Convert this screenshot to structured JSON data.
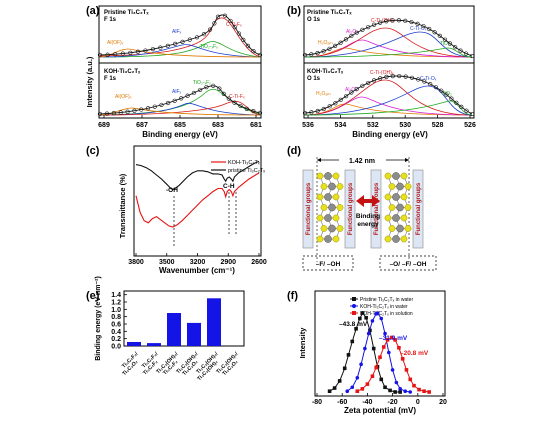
{
  "panels": {
    "a": {
      "label": "(a)",
      "top": {
        "title1": "Pristine Ti₃C₂Tₓ",
        "title2": "F 1s",
        "peaks": [
          "Al(OF)ₓ",
          "AlFₓ",
          "TiO₂-ₓFₓ",
          "C-Ti-Fₓ"
        ]
      },
      "bottom": {
        "title1": "KOH-Ti₃C₂Tₓ",
        "title2": "F 1s",
        "peaks": [
          "Al(OF)ₓ",
          "AlFₓ",
          "TiO₂-ₓFₓ",
          "C-Ti-Fₓ"
        ]
      },
      "xlabel": "Binding energy (eV)",
      "ylabel": "Intensity (a.u.)",
      "xticks": [
        "689",
        "687",
        "685",
        "683",
        "681"
      ]
    },
    "b": {
      "label": "(b)",
      "top": {
        "title1": "Pristine Ti₃C₂Tₓ",
        "title2": "O 1s",
        "peaks": [
          "H₂Oₐₙₛ",
          "Al₂O₃",
          "C-Ti-(OH)ₓ",
          "C-Ti-Oₓ",
          "TiO₂"
        ]
      },
      "bottom": {
        "title1": "KOH-Ti₃C₂Tₓ",
        "title2": "O 1s",
        "peaks": [
          "H₂Oₐₙₛ",
          "Al₂O₃",
          "C-Ti-(OH)ₓ",
          "C-Ti-Oₓ",
          "TiO₂"
        ]
      },
      "xlabel": "Binding energy (eV)",
      "xticks": [
        "536",
        "534",
        "532",
        "530",
        "528",
        "526"
      ]
    },
    "c": {
      "label": "(c)",
      "legend": [
        "KOH-Ti₃C₂Tₓ",
        "pristine Ti₃C₂Tₓ"
      ],
      "annotations": [
        "-OH",
        "C-H"
      ],
      "xlabel": "Wavenumber (cm⁻¹)",
      "ylabel": "Transmittance (%)",
      "xticks": [
        "3800",
        "3500",
        "3200",
        "2900",
        "2600"
      ]
    },
    "d": {
      "label": "(d)",
      "distance": "1.42 nm",
      "side_label": "Functional groups",
      "center_label1": "Binding",
      "center_label2": "energy",
      "left_bottom": "–F/ –OH",
      "right_bottom": "–O/ –F/ –OH"
    },
    "e": {
      "label": "(e)"
    },
    "f": {
      "label": "(f)",
      "legend": [
        "Pristine Ti₃C₂Tₓ in water",
        "KOH-Ti₃C₂Tₓ in water",
        "KOH-Ti₃C₂Tₓ in solution"
      ],
      "annotations": [
        "–43.8 mV",
        "–31.9 mV",
        "–20.8 mV"
      ]
    }
  },
  "chart_data": [
    {
      "panel": "e",
      "type": "bar",
      "categories": [
        "Ti₃C₂F₂ / Ti₃C₂O₂",
        "Ti₃C₂F₂ / Ti₃C₂F₂",
        "Ti₃C₂(OH)₂ / Ti₃C₂F₂",
        "Ti₃C₂(OH)₂ / Ti₃C₂O₂",
        "Ti₃C₂(OH)₂ / Ti₃C₂(OH)₂",
        "Ti₃C₂(OH)₂ / Ti₃C₂O₂"
      ],
      "category_lines": [
        [
          "Ti₃C₂F₂/",
          "Ti₃C₂O₂"
        ],
        [
          "Ti₃C₂F₂/",
          "Ti₃C₂F₂"
        ],
        [
          "Ti₃C₂(OH)₂/",
          "Ti₃C₂F₂"
        ],
        [
          "Ti₃C₂(OH)₂/",
          "Ti₃C₂O₂"
        ],
        [
          "Ti₃C₂(OH)₂/",
          "Ti₃C₂(OH)₂"
        ],
        [
          "Ti₃C₂(OH)₂/",
          "Ti₃C₂O₂"
        ]
      ],
      "values": [
        0.11,
        0.08,
        0.9,
        0.63,
        1.3,
        0.0
      ],
      "ylabel": "Binding energy (eV nm⁻²)",
      "ylim": [
        0,
        1.5
      ],
      "yticks": [
        "0.0",
        "0.2",
        "0.4",
        "0.6",
        "0.8",
        "1.0",
        "1.2",
        "1.4"
      ],
      "color": "#1414e6"
    },
    {
      "panel": "f",
      "type": "line",
      "xlabel": "Zeta potential (mV)",
      "ylabel": "Intensity",
      "xlim": [
        -80,
        20
      ],
      "xticks": [
        "-80",
        "-60",
        "-40",
        "-20",
        "0",
        "20"
      ],
      "series": [
        {
          "name": "Pristine Ti₃C₂Tₓ in water",
          "color": "#111111",
          "x": [
            -70,
            -66,
            -62,
            -58,
            -55,
            -52,
            -49,
            -46,
            -43.8,
            -41,
            -38,
            -35,
            -32,
            -29,
            -26,
            -22,
            -18,
            -14
          ],
          "y": [
            0.01,
            0.05,
            0.14,
            0.3,
            0.47,
            0.64,
            0.8,
            0.93,
            1.0,
            0.94,
            0.78,
            0.55,
            0.32,
            0.16,
            0.06,
            0.02,
            0.0,
            0.0
          ]
        },
        {
          "name": "KOH-Ti₃C₂Tₓ in water",
          "color": "#1414e6",
          "x": [
            -56,
            -52,
            -48,
            -45,
            -42,
            -39,
            -36,
            -33,
            -31.9,
            -29,
            -26,
            -23,
            -20,
            -17,
            -14,
            -10,
            -6
          ],
          "y": [
            0.01,
            0.06,
            0.18,
            0.35,
            0.55,
            0.74,
            0.9,
            0.99,
            1.0,
            0.93,
            0.74,
            0.5,
            0.28,
            0.12,
            0.04,
            0.01,
            0.0
          ]
        },
        {
          "name": "KOH-Ti₃C₂Tₓ in solution",
          "color": "#e61414",
          "x": [
            -48,
            -44,
            -40,
            -36,
            -33,
            -30,
            -27,
            -24,
            -20.8,
            -18,
            -15,
            -12,
            -9,
            -6,
            -3,
            1,
            5,
            9
          ],
          "y": [
            0.01,
            0.04,
            0.1,
            0.2,
            0.31,
            0.44,
            0.57,
            0.66,
            0.69,
            0.66,
            0.56,
            0.42,
            0.28,
            0.16,
            0.08,
            0.03,
            0.01,
            0.0
          ]
        }
      ]
    },
    {
      "panel": "c",
      "type": "line",
      "xlim": [
        3800,
        2600
      ],
      "series": [
        {
          "name": "KOH-Ti₃C₂Tₓ",
          "color": "#e61414",
          "x": [
            3800,
            3760,
            3720,
            3680,
            3640,
            3600,
            3560,
            3520,
            3480,
            3440,
            3400,
            3350,
            3300,
            3250,
            3200,
            3150,
            3100,
            3050,
            3000,
            2960,
            2940,
            2925,
            2910,
            2890,
            2870,
            2855,
            2840,
            2800,
            2750,
            2700,
            2650,
            2600
          ],
          "y": [
            0.56,
            0.4,
            0.32,
            0.3,
            0.34,
            0.36,
            0.33,
            0.3,
            0.27,
            0.26,
            0.28,
            0.32,
            0.37,
            0.42,
            0.47,
            0.52,
            0.56,
            0.6,
            0.63,
            0.63,
            0.6,
            0.55,
            0.6,
            0.62,
            0.6,
            0.56,
            0.6,
            0.64,
            0.68,
            0.72,
            0.75,
            0.78
          ]
        },
        {
          "name": "pristine Ti₃C₂Tₓ",
          "color": "#111111",
          "x": [
            3800,
            3750,
            3700,
            3650,
            3600,
            3550,
            3500,
            3460,
            3440,
            3420,
            3380,
            3340,
            3300,
            3250,
            3200,
            3150,
            3100,
            3050,
            3000,
            2960,
            2940,
            2925,
            2910,
            2890,
            2870,
            2855,
            2840,
            2800,
            2750,
            2700,
            2650,
            2600
          ],
          "y": [
            0.86,
            0.85,
            0.83,
            0.8,
            0.76,
            0.72,
            0.67,
            0.63,
            0.62,
            0.63,
            0.66,
            0.7,
            0.74,
            0.78,
            0.8,
            0.8,
            0.79,
            0.77,
            0.77,
            0.76,
            0.72,
            0.7,
            0.73,
            0.74,
            0.72,
            0.7,
            0.74,
            0.78,
            0.81,
            0.84,
            0.87,
            0.89
          ]
        }
      ]
    }
  ]
}
